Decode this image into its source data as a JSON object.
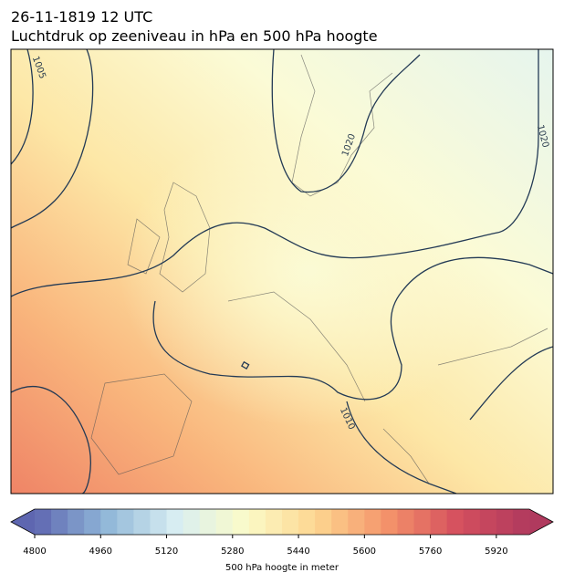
{
  "title": "26-11-1819 12 UTC",
  "subtitle": "Luchtdruk op zeeniveau in hPa en 500 hPa hoogte",
  "contour_labels": [
    "1005",
    "1020",
    "1020",
    "1010"
  ],
  "colorbar": {
    "label": "500 hPa hoogte in meter",
    "lim": [
      4800,
      6000
    ],
    "ticks": [
      4800,
      4960,
      5120,
      5280,
      5440,
      5600,
      5760,
      5920
    ],
    "colors": [
      "#5e66b0",
      "#8fb6d8",
      "#d8eef2",
      "#fbfbc8",
      "#fdd58f",
      "#f4926a",
      "#d44f5e",
      "#b03a5e"
    ]
  }
}
